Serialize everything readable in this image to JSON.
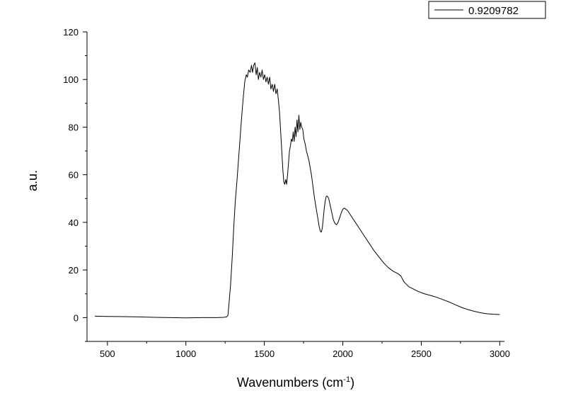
{
  "chart_data": {
    "type": "line",
    "title": "",
    "xlabel": "Wavenumbers (cm",
    "xlabel_superscript": "-1",
    "xlabel_suffix": ")",
    "ylabel": "a.u.",
    "xlim": [
      370,
      3030
    ],
    "ylim": [
      -10,
      120
    ],
    "xticks": [
      500,
      1000,
      1500,
      2000,
      2500,
      3000
    ],
    "yticks": [
      0,
      20,
      40,
      60,
      80,
      100,
      120
    ],
    "grid": false,
    "legend_position": "top-right",
    "line_color": "#000000",
    "series": [
      {
        "name": "0.9209782",
        "points": [
          [
            420,
            0.6
          ],
          [
            500,
            0.5
          ],
          [
            600,
            0.4
          ],
          [
            700,
            0.3
          ],
          [
            800,
            0.1
          ],
          [
            900,
            0.0
          ],
          [
            1000,
            -0.1
          ],
          [
            1100,
            0.0
          ],
          [
            1200,
            0.0
          ],
          [
            1240,
            0.1
          ],
          [
            1260,
            0.3
          ],
          [
            1268,
            1.0
          ],
          [
            1275,
            6
          ],
          [
            1285,
            14
          ],
          [
            1295,
            25
          ],
          [
            1305,
            38
          ],
          [
            1315,
            49
          ],
          [
            1325,
            57
          ],
          [
            1335,
            66
          ],
          [
            1345,
            75
          ],
          [
            1355,
            84
          ],
          [
            1365,
            92
          ],
          [
            1375,
            99
          ],
          [
            1385,
            102
          ],
          [
            1392,
            101
          ],
          [
            1400,
            104
          ],
          [
            1410,
            103
          ],
          [
            1418,
            106
          ],
          [
            1425,
            103
          ],
          [
            1432,
            106
          ],
          [
            1440,
            107
          ],
          [
            1448,
            102
          ],
          [
            1455,
            105
          ],
          [
            1462,
            100
          ],
          [
            1470,
            103
          ],
          [
            1478,
            101
          ],
          [
            1486,
            104
          ],
          [
            1494,
            100
          ],
          [
            1502,
            102
          ],
          [
            1510,
            99
          ],
          [
            1518,
            101
          ],
          [
            1526,
            98
          ],
          [
            1534,
            101
          ],
          [
            1542,
            96
          ],
          [
            1550,
            98
          ],
          [
            1558,
            95
          ],
          [
            1566,
            98
          ],
          [
            1574,
            94
          ],
          [
            1582,
            96
          ],
          [
            1590,
            91
          ],
          [
            1597,
            86
          ],
          [
            1604,
            78
          ],
          [
            1611,
            70
          ],
          [
            1618,
            62
          ],
          [
            1624,
            57
          ],
          [
            1630,
            56
          ],
          [
            1636,
            58
          ],
          [
            1642,
            56
          ],
          [
            1648,
            60
          ],
          [
            1654,
            65
          ],
          [
            1660,
            70
          ],
          [
            1666,
            72
          ],
          [
            1672,
            75
          ],
          [
            1678,
            74
          ],
          [
            1684,
            78
          ],
          [
            1690,
            74
          ],
          [
            1696,
            80
          ],
          [
            1702,
            76
          ],
          [
            1708,
            83
          ],
          [
            1714,
            78
          ],
          [
            1720,
            85
          ],
          [
            1726,
            79
          ],
          [
            1732,
            82
          ],
          [
            1738,
            80
          ],
          [
            1745,
            79
          ],
          [
            1752,
            75
          ],
          [
            1760,
            73
          ],
          [
            1768,
            70
          ],
          [
            1776,
            68
          ],
          [
            1784,
            66
          ],
          [
            1792,
            63
          ],
          [
            1800,
            60
          ],
          [
            1810,
            55
          ],
          [
            1820,
            50
          ],
          [
            1830,
            46
          ],
          [
            1840,
            42
          ],
          [
            1850,
            38
          ],
          [
            1858,
            36
          ],
          [
            1864,
            36
          ],
          [
            1870,
            38
          ],
          [
            1876,
            42
          ],
          [
            1882,
            46
          ],
          [
            1888,
            49
          ],
          [
            1895,
            51
          ],
          [
            1902,
            51
          ],
          [
            1910,
            50
          ],
          [
            1920,
            47
          ],
          [
            1930,
            44
          ],
          [
            1940,
            41
          ],
          [
            1950,
            39.5
          ],
          [
            1960,
            39
          ],
          [
            1970,
            40
          ],
          [
            1980,
            42
          ],
          [
            1990,
            44
          ],
          [
            2000,
            45.5
          ],
          [
            2010,
            46
          ],
          [
            2020,
            45.5
          ],
          [
            2030,
            45
          ],
          [
            2050,
            43
          ],
          [
            2080,
            40
          ],
          [
            2110,
            37
          ],
          [
            2140,
            34
          ],
          [
            2170,
            31
          ],
          [
            2200,
            28
          ],
          [
            2230,
            25.5
          ],
          [
            2260,
            23
          ],
          [
            2290,
            21
          ],
          [
            2320,
            19.5
          ],
          [
            2350,
            18.5
          ],
          [
            2370,
            17.5
          ],
          [
            2390,
            15
          ],
          [
            2420,
            13
          ],
          [
            2450,
            12
          ],
          [
            2480,
            11
          ],
          [
            2520,
            10
          ],
          [
            2560,
            9.3
          ],
          [
            2600,
            8.5
          ],
          [
            2640,
            7.5
          ],
          [
            2680,
            6.5
          ],
          [
            2720,
            5.3
          ],
          [
            2760,
            4.2
          ],
          [
            2800,
            3.3
          ],
          [
            2840,
            2.6
          ],
          [
            2880,
            2.0
          ],
          [
            2920,
            1.6
          ],
          [
            2960,
            1.4
          ],
          [
            3000,
            1.3
          ]
        ]
      }
    ]
  }
}
